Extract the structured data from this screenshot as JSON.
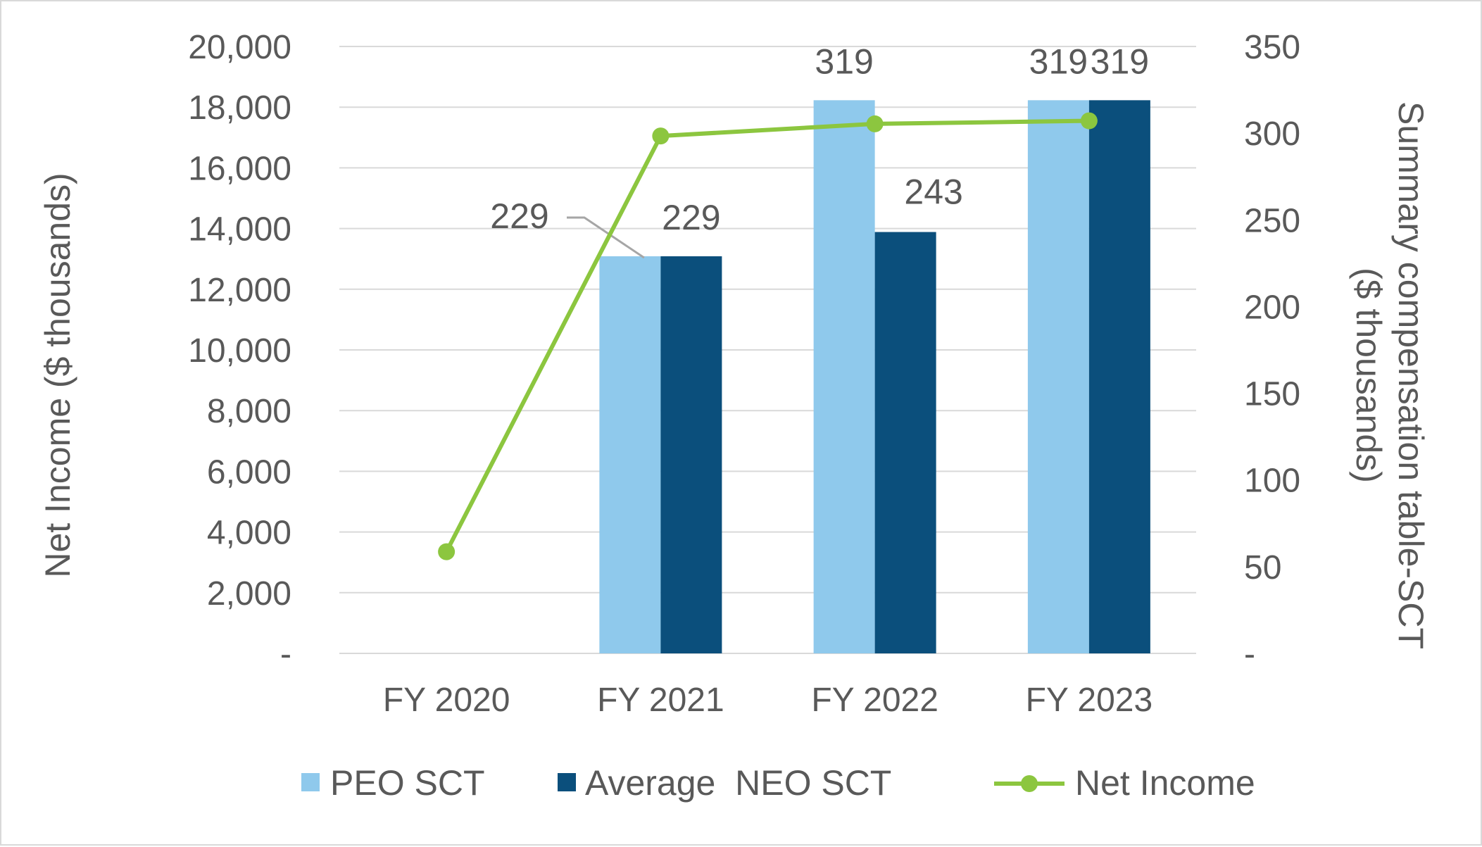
{
  "chart_data": {
    "type": "bar",
    "categories": [
      "FY 2020",
      "FY 2021",
      "FY 2022",
      "FY 2023"
    ],
    "series": [
      {
        "name": "PEO SCT",
        "axis": "right",
        "kind": "bar",
        "values": [
          null,
          229,
          319,
          319
        ],
        "data_labels": [
          "",
          "229",
          "319",
          "319"
        ],
        "color": "#8fc9ec"
      },
      {
        "name": "Average  NEO SCT",
        "axis": "right",
        "kind": "bar",
        "values": [
          null,
          229,
          243,
          319
        ],
        "data_labels": [
          "",
          "229",
          "243",
          "319"
        ],
        "color": "#0b4f7c"
      },
      {
        "name": "Net Income",
        "axis": "left",
        "kind": "line",
        "values": [
          3350,
          17050,
          17450,
          17550
        ],
        "color": "#8cc63f"
      }
    ],
    "ylabel": "Net Income ($ thousands)",
    "ylabel_right_lines": [
      "Summary compensation table-SCT",
      "($ thousands)"
    ],
    "ylim": [
      0,
      20000
    ],
    "ylim_right": [
      0,
      350
    ],
    "yticks": [
      "-",
      "2,000",
      "4,000",
      "6,000",
      "8,000",
      "10,000",
      "12,000",
      "14,000",
      "16,000",
      "18,000",
      "20,000"
    ],
    "yticks_right": [
      "-",
      "50",
      "100",
      "150",
      "200",
      "250",
      "300",
      "350"
    ],
    "grid": true,
    "legend_position": "bottom"
  }
}
